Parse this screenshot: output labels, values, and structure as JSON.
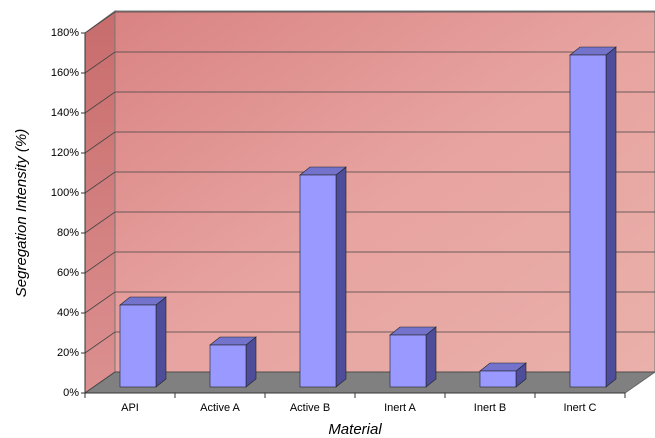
{
  "chart_data": {
    "type": "bar3d",
    "x_label": "Material",
    "y_label": "Segregation Intensity (%)",
    "categories": [
      "API",
      "Active A",
      "Active B",
      "Inert A",
      "Inert B",
      "Inert C"
    ],
    "values": [
      41,
      21,
      106,
      26,
      8,
      166
    ],
    "color": "#9999ff",
    "ylim": [
      0,
      180
    ],
    "yticks": [
      {
        "value": 0,
        "label": "0%"
      },
      {
        "value": 20,
        "label": "20%"
      },
      {
        "value": 40,
        "label": "40%"
      },
      {
        "value": 60,
        "label": "60%"
      },
      {
        "value": 80,
        "label": "80%"
      },
      {
        "value": 100,
        "label": "100%"
      },
      {
        "value": 120,
        "label": "120%"
      },
      {
        "value": 140,
        "label": "140%"
      },
      {
        "value": 160,
        "label": "160%"
      },
      {
        "value": 180,
        "label": "180%"
      }
    ],
    "grid": true
  }
}
